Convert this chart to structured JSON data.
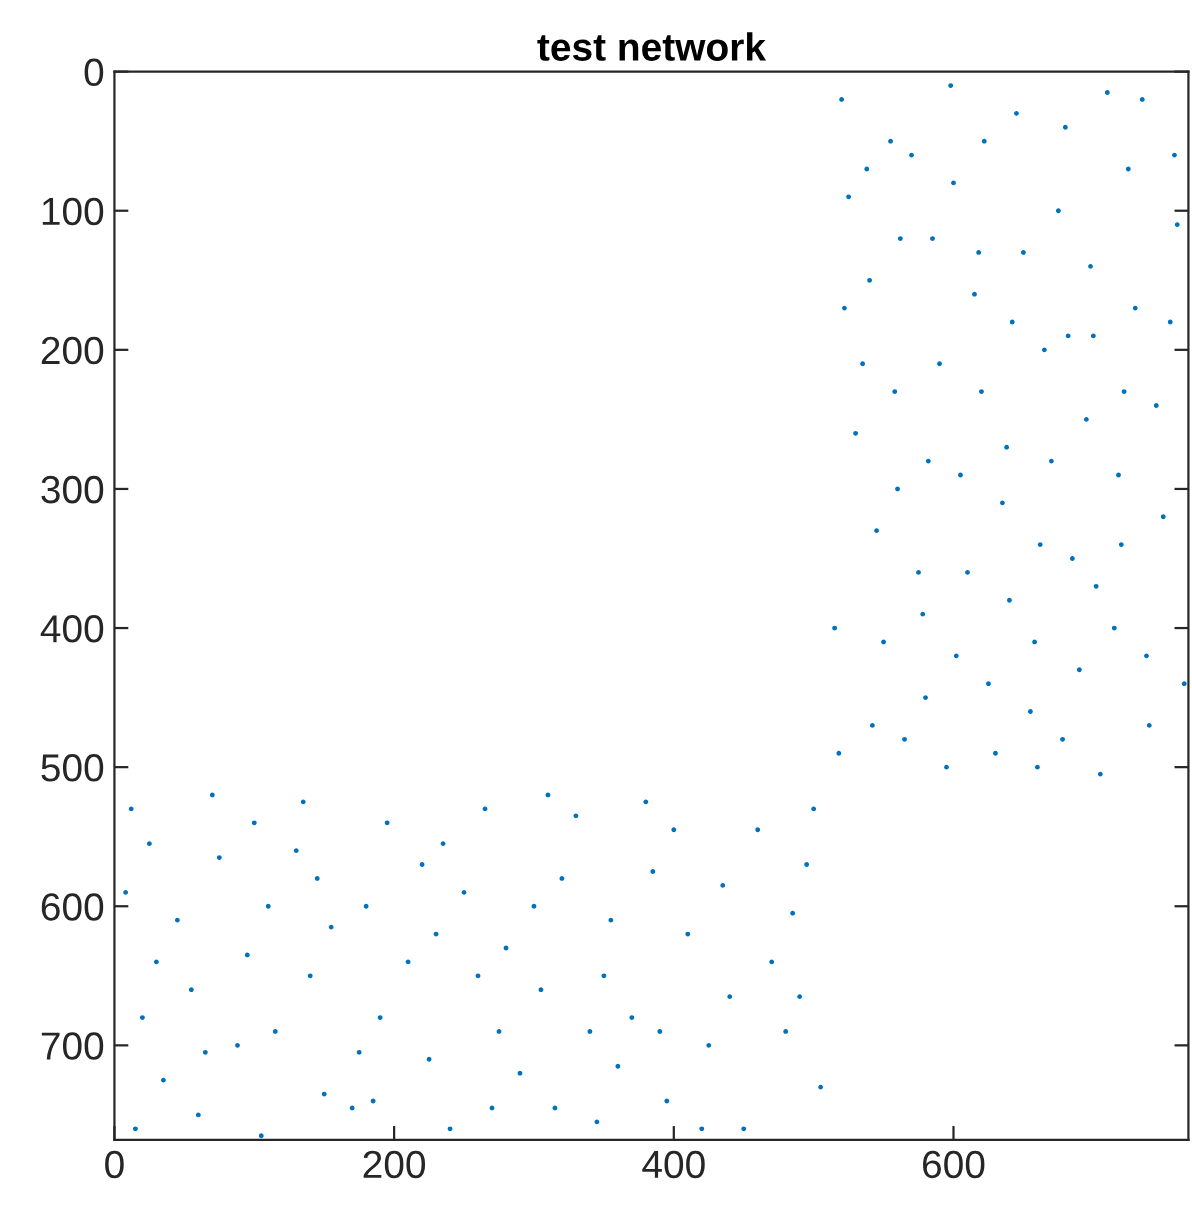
{
  "chart_data": {
    "type": "scatter",
    "title": "test network",
    "x": [
      12,
      45,
      88,
      130,
      170,
      210,
      250,
      290,
      330,
      370,
      410,
      450,
      495,
      20,
      60,
      100,
      140,
      180,
      225,
      265,
      305,
      345,
      385,
      425,
      470,
      505,
      8,
      35,
      75,
      115,
      155,
      195,
      240,
      280,
      320,
      360,
      400,
      440,
      485,
      30,
      70,
      110,
      150,
      190,
      235,
      275,
      315,
      355,
      395,
      435,
      480,
      500,
      15,
      55,
      95,
      135,
      175,
      220,
      260,
      300,
      340,
      380,
      420,
      460,
      490,
      25,
      65,
      105,
      145,
      185,
      230,
      270,
      310,
      350,
      390,
      520,
      540,
      560,
      580,
      600,
      620,
      640,
      660,
      680,
      700,
      720,
      740,
      760,
      530,
      550,
      570,
      590,
      610,
      630,
      650,
      670,
      690,
      710,
      730,
      750,
      765,
      525,
      545,
      565,
      585,
      605,
      625,
      645,
      665,
      685,
      705,
      725,
      745,
      515,
      535,
      555,
      575,
      595,
      615,
      635,
      655,
      675,
      695,
      715,
      735,
      755,
      518,
      538,
      558,
      578,
      598,
      618,
      638,
      658,
      678,
      698,
      718,
      738,
      758,
      522,
      542,
      562,
      582,
      602,
      622,
      642,
      662,
      682,
      702,
      722
    ],
    "series": [
      {
        "color": "#0072bd",
        "values": [
          530,
          610,
          700,
          560,
          745,
          640,
          590,
          720,
          535,
          680,
          620,
          760,
          570,
          680,
          750,
          540,
          650,
          600,
          710,
          530,
          660,
          755,
          575,
          700,
          640,
          730,
          590,
          725,
          565,
          690,
          615,
          540,
          760,
          630,
          580,
          715,
          545,
          665,
          605,
          640,
          520,
          600,
          735,
          680,
          555,
          690,
          745,
          610,
          740,
          585,
          690,
          530,
          760,
          660,
          635,
          525,
          705,
          570,
          650,
          600,
          690,
          525,
          760,
          545,
          665,
          555,
          705,
          765,
          580,
          740,
          620,
          745,
          520,
          650,
          690,
          20,
          150,
          300,
          450,
          80,
          230,
          380,
          500,
          40,
          190,
          340,
          470,
          110,
          260,
          410,
          60,
          210,
          360,
          490,
          130,
          280,
          430,
          15,
          170,
          320,
          440,
          90,
          330,
          480,
          120,
          290,
          440,
          30,
          200,
          350,
          505,
          70,
          240,
          400,
          210,
          50,
          360,
          500,
          160,
          310,
          460,
          100,
          250,
          400,
          20,
          180,
          490,
          70,
          230,
          390,
          10,
          130,
          270,
          410,
          480,
          140,
          290,
          420,
          60,
          170,
          470,
          120,
          280,
          420,
          50,
          180,
          340,
          190,
          370,
          230
        ]
      }
    ],
    "xlim": [
      0,
      768
    ],
    "ylim": [
      768,
      0
    ],
    "xticks": [
      0,
      200,
      400,
      600
    ],
    "yticks": [
      0,
      100,
      200,
      300,
      400,
      500,
      600,
      700
    ],
    "marker": "circle",
    "grid": false,
    "legend": false
  }
}
